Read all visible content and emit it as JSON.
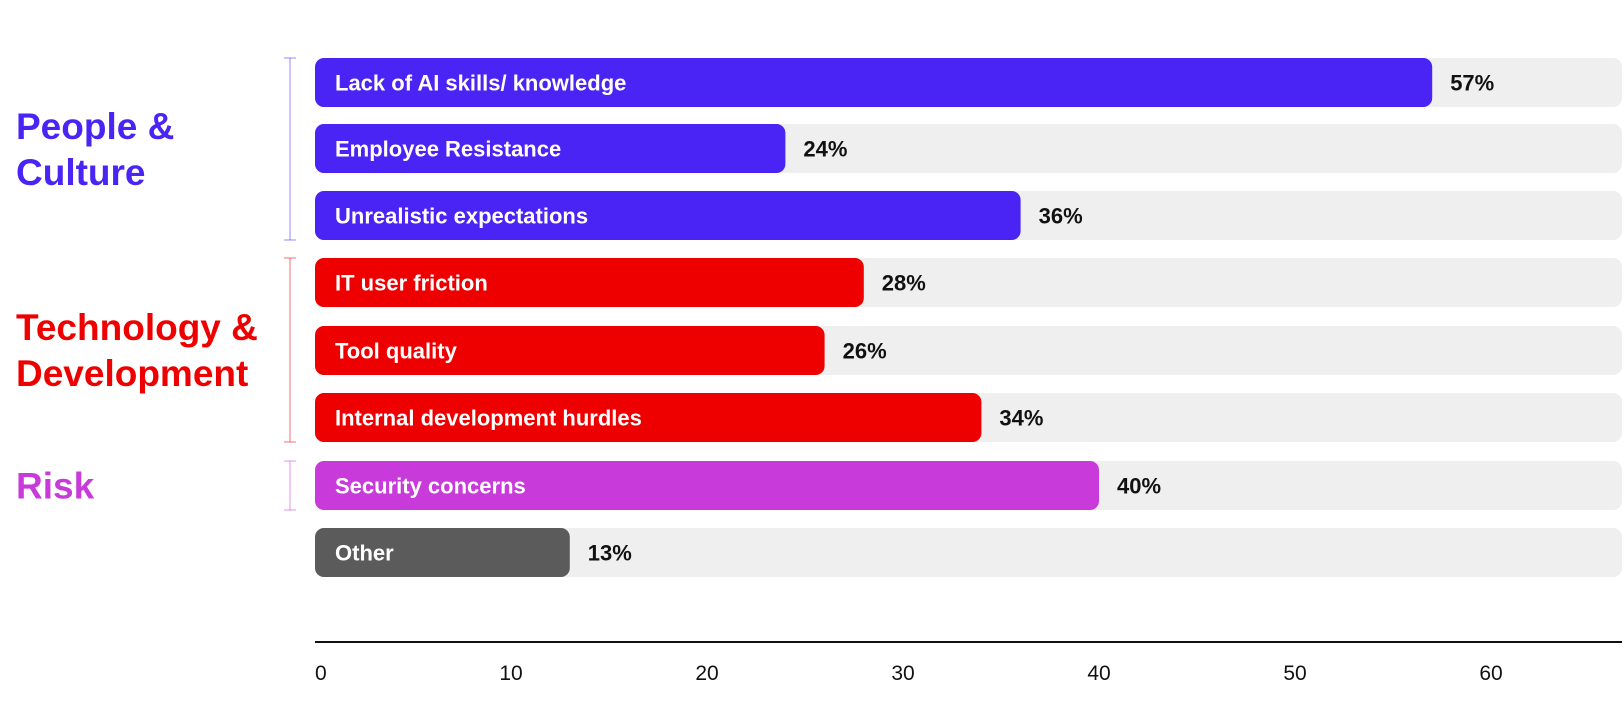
{
  "chart_data": {
    "type": "bar",
    "orientation": "horizontal",
    "title": "",
    "xlabel": "",
    "ylabel": "",
    "xlim": [
      0,
      65
    ],
    "xticks": [
      0,
      10,
      20,
      30,
      40,
      50,
      60
    ],
    "grid": false,
    "groups": [
      {
        "name": "People &\nCulture",
        "lines": [
          "People &",
          "Culture"
        ],
        "color": "#4a24f5",
        "start": 0,
        "end": 2
      },
      {
        "name": "Technology &\nDevelopment",
        "lines": [
          "Technology &",
          "Development"
        ],
        "color": "#ef0000",
        "start": 3,
        "end": 5
      },
      {
        "name": "Risk",
        "lines": [
          "Risk"
        ],
        "color": "#c83ad9",
        "start": 6,
        "end": 6
      }
    ],
    "categories": [
      "Lack of AI skills/ knowledge",
      "Employee Resistance",
      "Unrealistic expectations",
      "IT user friction",
      "Tool quality",
      "Internal development hurdles",
      "Security concerns",
      "Other"
    ],
    "values": [
      57,
      24,
      36,
      28,
      26,
      34,
      40,
      13
    ],
    "value_labels": [
      "57%",
      "24%",
      "36%",
      "28%",
      "26%",
      "34%",
      "40%",
      "13%"
    ],
    "bar_colors": [
      "#4a24f5",
      "#4a24f5",
      "#4a24f5",
      "#ef0000",
      "#ef0000",
      "#ef0000",
      "#c83ad9",
      "#5b5b5b"
    ],
    "track_color": "#efefef",
    "axis_color": "#111111"
  }
}
